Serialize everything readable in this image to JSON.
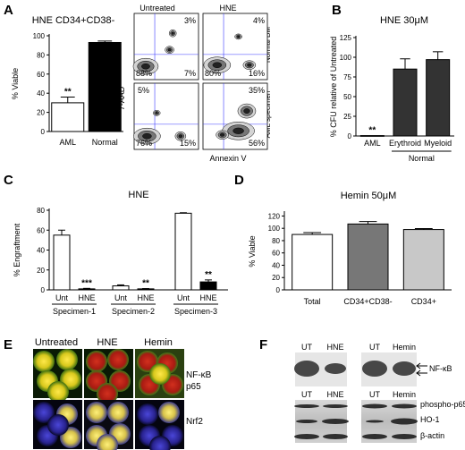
{
  "panel_letters": [
    "A",
    "B",
    "C",
    "D",
    "E",
    "F"
  ],
  "flow": {
    "col_labels": [
      "Untreated",
      "HNE"
    ],
    "row_labels": [
      "Normal BM",
      "AML specimen"
    ],
    "x_label": "Annexin V",
    "y_label": "7-AAD",
    "quadrants": [
      {
        "ul": "",
        "ur": "3%",
        "ll": "88%",
        "lr": "7%"
      },
      {
        "ul": "",
        "ur": "4%",
        "ll": "80%",
        "lr": "16%"
      },
      {
        "ul": "5%",
        "ur": "",
        "ll": "76%",
        "lr": "15%"
      },
      {
        "ul": "",
        "ur": "35%",
        "ll": "",
        "lr": "56%"
      }
    ]
  },
  "blots": {
    "top_labels": [
      "UT",
      "HNE",
      "UT",
      "Hemin"
    ],
    "bottom_labels": [
      "UT",
      "HNE",
      "UT",
      "Hemin"
    ],
    "nfkb_label": "NF-κB",
    "protein_labels": [
      "phospho-p65",
      "HO-1",
      "β-actin"
    ]
  },
  "micro": {
    "col_labels": [
      "Untreated",
      "HNE",
      "Hemin"
    ],
    "row_labels": [
      "NF-κB\np65",
      "Nrf2"
    ]
  },
  "colors": {
    "white": "#ffffff",
    "black": "#000000",
    "dark_gray": "#333333",
    "gray": "#777777",
    "light_gray": "#c8c8c8"
  },
  "chart_data": [
    {
      "id": "A",
      "type": "bar",
      "title": "HNE CD34+CD38-",
      "ylabel": "% Viable",
      "xlabel": "",
      "ylim": [
        0,
        100
      ],
      "yticks": [
        0,
        20,
        40,
        60,
        80,
        100
      ],
      "categories": [
        "AML",
        "Normal"
      ],
      "values": [
        30,
        93
      ],
      "errors": [
        6,
        1.5
      ],
      "fills": [
        "#ffffff",
        "#000000"
      ],
      "annotations": [
        "**",
        ""
      ],
      "group_labels": []
    },
    {
      "id": "B",
      "type": "bar",
      "title": "HNE 30μM",
      "ylabel": "% CFU relative of Untreated",
      "xlabel": "",
      "ylim": [
        0,
        125
      ],
      "yticks": [
        0,
        25,
        50,
        75,
        100,
        125
      ],
      "categories": [
        "AML",
        "Erythroid",
        "Myeloid"
      ],
      "values": [
        0.5,
        85,
        97
      ],
      "errors": [
        0,
        13,
        10
      ],
      "fills": [
        "#ffffff",
        "#333333",
        "#333333"
      ],
      "annotations": [
        "**",
        "",
        ""
      ],
      "group_labels": [
        {
          "label": "Normal",
          "from": 1,
          "to": 2
        }
      ]
    },
    {
      "id": "C",
      "type": "bar",
      "title": "HNE",
      "ylabel": "% Engraftment",
      "xlabel": "",
      "ylim": [
        0,
        80
      ],
      "yticks": [
        0,
        20,
        40,
        60,
        80
      ],
      "categories": [
        "Unt",
        "HNE",
        "Unt",
        "HNE",
        "Unt",
        "HNE"
      ],
      "values": [
        55,
        1,
        4,
        1,
        77,
        8
      ],
      "errors": [
        5,
        0.5,
        1,
        0.3,
        0.5,
        2
      ],
      "fills": [
        "#ffffff",
        "#000000",
        "#ffffff",
        "#000000",
        "#ffffff",
        "#000000"
      ],
      "annotations": [
        "",
        "***",
        "",
        "**",
        "",
        "**"
      ],
      "group_labels": [
        {
          "label": "Specimen-1",
          "from": 0,
          "to": 1
        },
        {
          "label": "Specimen-2",
          "from": 2,
          "to": 3
        },
        {
          "label": "Specimen-3",
          "from": 4,
          "to": 5
        }
      ]
    },
    {
      "id": "D",
      "type": "bar",
      "title": "Hemin 50μM",
      "ylabel": "% Viable",
      "xlabel": "",
      "ylim": [
        0,
        125
      ],
      "yticks": [
        0,
        20,
        40,
        60,
        80,
        100,
        120
      ],
      "categories": [
        "Total",
        "CD34+CD38-",
        "CD34+"
      ],
      "values": [
        90,
        107,
        98
      ],
      "errors": [
        3,
        4,
        1.5
      ],
      "fills": [
        "#ffffff",
        "#777777",
        "#c8c8c8"
      ],
      "annotations": [
        "",
        "",
        ""
      ],
      "group_labels": []
    }
  ]
}
